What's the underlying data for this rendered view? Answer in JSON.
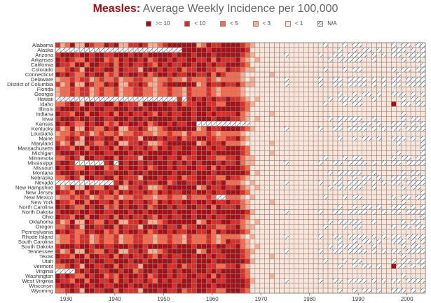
{
  "chart_data": {
    "type": "heatmap",
    "title_lead": "Measles:",
    "title_rest": "Average Weekly Incidence per 100,000",
    "x_start": 1928,
    "x_end": 2003,
    "x_ticks": [
      "1930",
      "1940",
      "1950",
      "1960",
      "1970",
      "1980",
      "1990",
      "2000"
    ],
    "legend": [
      {
        "code": "4",
        "label": ">= 10",
        "color": "#a50f15"
      },
      {
        "code": "3",
        "label": "< 10",
        "color": "#de2d26"
      },
      {
        "code": "2",
        "label": "< 5",
        "color": "#fb6a4a"
      },
      {
        "code": "1",
        "label": "< 3",
        "color": "#fcae91"
      },
      {
        "code": "0",
        "label": "< 1",
        "color": "#fee5d9"
      },
      {
        "code": "x",
        "label": "N/A",
        "color": "hatch"
      }
    ],
    "rows": [
      {
        "state": "Alabama",
        "values": "3124114322434113343112344444412433444432100000000000000x000x0xx000000x0xx0xx"
      },
      {
        "state": "Alaska",
        "values": "xxxxxxxxxxxxxxxxxxxxxxxxxx44444344444443000000000000000000x00x0xx0x00xxx0x0x"
      },
      {
        "state": "Arizona",
        "values": "34443443443344434434444434443444344444321000000x000000x00xx0xxxx0x0x0xx0xxxx"
      },
      {
        "state": "Arkansas",
        "values": "43432243442324344342344343344334243334210100000000000000x0xxxxx00x00000x0xx0"
      },
      {
        "state": "California",
        "values": "433244244334243433432434334434434334443200000000000000000000000000000000000x"
      },
      {
        "state": "Colorado",
        "values": "2234314433442433314443433423344332243321100000000000000x000x0xx000000x0xx0xx"
      },
      {
        "state": "Connecticut",
        "values": "4343224344232434434234434334433424322210000010000000000000000000000000x0000x"
      },
      {
        "state": "Delaware",
        "values": "12232331232231223322122322132223212222101000000x000000x00xx0xxxx0x0x0xx0xxxx"
      },
      {
        "state": "District of Columbia",
        "values": "31241143224341133431123444444124334334211000000x000000x00xx0xxxx0x0x0xx0xxxx"
      },
      {
        "state": "Florida",
        "values": "1223233123223122332212232213222321222210000000000000000000000000000000000000x"
      },
      {
        "state": "Georgia",
        "values": "1223233123223122332212232213222321222210000000000000000000x00x0xx0x00xxx0x0x"
      },
      {
        "state": "Hawaii",
        "values": "xxxxxxxxxxxxxxxxxxxxxxxxx3x34343433433210100000000000000x0xxxxx00x00000x0xx0"
      },
      {
        "state": "Idaho",
        "values": "2234314433442433314443433423344332244432100000000000000x000x0xx00000040xx0xx"
      },
      {
        "state": "Illinois",
        "values": "3444344344334443443444443444344434444432000000000000000000000000000000000000x"
      },
      {
        "state": "Indiana",
        "values": "43324424433424343343243433443443433334210000100000000000000000000000000x0000x"
      },
      {
        "state": "Iowa",
        "values": "34443443443344434434444434443444344433210100000000000000x0xxxxx00x00000x0xx0"
      },
      {
        "state": "Kansas",
        "values": "43432243442324344342344343344xxxxxxxxxxx000000000000000000x00x0xx0x00xxx0x0x"
      },
      {
        "state": "Kentucky",
        "values": "31241143224341133431123444444124334444321000000x000000x00xx0xxxx0x0x0xx0xxxx"
      },
      {
        "state": "Louisiana",
        "values": "1223233123223122332212232213222321222210000000000000000000000000000000000000x"
      },
      {
        "state": "Maine",
        "values": "2234314433442433314443433423344332233421000000000000000000x00x0xx0x00xxx0x0x"
      },
      {
        "state": "Maryland",
        "values": "3124114322434113343112344444412433422210000010000000000000000000000000x0000x"
      },
      {
        "state": "Massachusetts",
        "values": "433244244334243433432434334434434334443200000000000000000000000000000000000x"
      },
      {
        "state": "Michigan",
        "values": "3444344344334443443444443444344434444432000010000000000000000000000000x0000x"
      },
      {
        "state": "Minnesota",
        "values": "2234314433442433314443433423344332233421100000000000000x000x0xx000000x0xx0xx"
      },
      {
        "state": "Mississippi",
        "values": "3443xxxxxx34x4344343444343434344434334211000000x000000x00xx0xxxx0x0x0xx0xxxx"
      },
      {
        "state": "Missouri",
        "values": "4343224344232434434234434334433424344432000000000000000000000000000000000000x"
      },
      {
        "state": "Montana",
        "values": "34443443443344434434444434443444344444430100000000000000x0xxxxx00x00000x0xx0"
      },
      {
        "state": "Nebraska",
        "values": "2234314433442433314443433423344332243321000000000000000000x00x0xx0x00xxx0x0x"
      },
      {
        "state": "Nevada",
        "values": "xxxxxxxxxxxx34243343344234433443434222101000000x000000x00xx0xxxx0x0x0xx0xxxx"
      },
      {
        "state": "New Hampshire",
        "values": "31241143224341133431123444444124334334210100000000000000x0xxxxx00x00000x0xx0"
      },
      {
        "state": "New Jersey",
        "values": "433244244334243433432434334434434334443200000000000000000000000000000000000x"
      },
      {
        "state": "New Mexico",
        "values": "122323312322312233221223221322232xx22210100000000000000x000x0xx000000x0xx0xx"
      },
      {
        "state": "New York",
        "values": "43324424433424343343243433443443433433210000100000000000000000000000000x0000x"
      },
      {
        "state": "North Carolina",
        "values": "4343224344232434434234434334433424333421000000000000000000x00x0xx0x00xxx0x0x"
      },
      {
        "state": "North Dakota",
        "values": "34443443443344434434444434443444344444431000000x000000x00xx0xxxx0x0x0xx0xxxx"
      },
      {
        "state": "Ohio",
        "values": "433244244334243433432434334434434334443200000000000000000000000000000000000x"
      },
      {
        "state": "Oklahoma",
        "values": "31241143224341133431123444444124334433210100000000000000x0xxxxx00x00000x0xx0"
      },
      {
        "state": "Oregon",
        "values": "2234314433442433314443433423344332233421100000000000000x000x0xx000000x0xx0xx"
      },
      {
        "state": "Pennsylvania",
        "values": "4343224344232434434234434334433424344432000000000000000000000000000000000000x"
      },
      {
        "state": "Rhode Island",
        "values": "12232331232231223322122322132223212222101000000x000000x00xx0xxxx0x0x0xx0xxxx"
      },
      {
        "state": "South Carolina",
        "values": "1223233123223122332212232213222321243321000000000000000000x00x0xx0x00xxx0x0x"
      },
      {
        "state": "South Dakota",
        "values": "34443443443344434434444434443444344334210100000000000000x0xxxxx00x00000x0xx0"
      },
      {
        "state": "Tennessee",
        "values": "31241143224341133431123444444124334444321000000x000000x00xx0xxxx0x0x0xx0xxxx"
      },
      {
        "state": "Texas",
        "values": "43324424433424343343243433443443433444320000100000000000000000000000000x0000x"
      },
      {
        "state": "Utah",
        "values": "3444344344334443443444443444344434444443100000000000000x000x0xx000000x0xx0xx"
      },
      {
        "state": "Vermont",
        "values": "2234314433442433314443433423344332233421000000000000000000x00x0xx0x004xx0x0x"
      },
      {
        "state": "Virginia",
        "values": "xxxx343443344344234434434344344343444432000000000000000000000000000000000000x"
      },
      {
        "state": "Washington",
        "values": "43432243442324344342344343344334243444320000100000000000000000000000000x0000x"
      },
      {
        "state": "West Virginia",
        "values": "43324424433424343343243433443443433444431000000x000000x00xx0xxxx0x0x0xx0xxxx"
      },
      {
        "state": "Wisconsin",
        "values": "3444344344334443443444443444344434444443000000000000000000000000000000000000x"
      },
      {
        "state": "Wyoming",
        "values": "2234314433442433314443433423344332244432000000000000000000x00x0xx0x00xxx0x0x"
      }
    ]
  }
}
